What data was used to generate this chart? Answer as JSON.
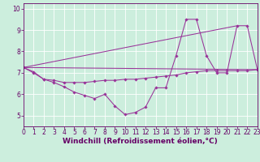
{
  "xlabel": "Windchill (Refroidissement éolien,°C)",
  "bg_color": "#cceedd",
  "grid_color": "#ffffff",
  "line_color": "#993399",
  "xmin": 0,
  "xmax": 23,
  "ymin": 4.5,
  "ymax": 10.25,
  "yticks": [
    5,
    6,
    7,
    8,
    9,
    10
  ],
  "xticks": [
    0,
    1,
    2,
    3,
    4,
    5,
    6,
    7,
    8,
    9,
    10,
    11,
    12,
    13,
    14,
    15,
    16,
    17,
    18,
    19,
    20,
    21,
    22,
    23
  ],
  "line1_x": [
    0,
    1,
    2,
    3,
    4,
    5,
    6,
    7,
    8,
    9,
    10,
    11,
    12,
    13,
    14,
    15,
    16,
    17,
    18,
    19,
    20,
    21,
    22,
    23
  ],
  "line1_y": [
    7.25,
    7.05,
    6.7,
    6.55,
    6.35,
    6.1,
    5.95,
    5.8,
    6.0,
    5.45,
    5.05,
    5.15,
    5.4,
    6.3,
    6.3,
    7.8,
    9.5,
    9.5,
    7.8,
    7.0,
    7.0,
    9.2,
    9.2,
    7.15
  ],
  "line2_x": [
    0,
    1,
    2,
    3,
    4,
    5,
    6,
    7,
    8,
    9,
    10,
    11,
    12,
    13,
    14,
    15,
    16,
    17,
    18,
    19,
    20,
    21,
    22,
    23
  ],
  "line2_y": [
    7.25,
    7.0,
    6.7,
    6.65,
    6.55,
    6.55,
    6.55,
    6.6,
    6.65,
    6.65,
    6.7,
    6.7,
    6.75,
    6.8,
    6.85,
    6.9,
    7.0,
    7.05,
    7.1,
    7.1,
    7.1,
    7.1,
    7.1,
    7.15
  ],
  "line3_x": [
    0,
    21
  ],
  "line3_y": [
    7.25,
    9.2
  ],
  "line4_x": [
    0,
    23
  ],
  "line4_y": [
    7.25,
    7.15
  ],
  "figsize": [
    3.2,
    2.0
  ],
  "dpi": 100,
  "tick_fontsize": 5.5,
  "xlabel_fontsize": 6.5
}
